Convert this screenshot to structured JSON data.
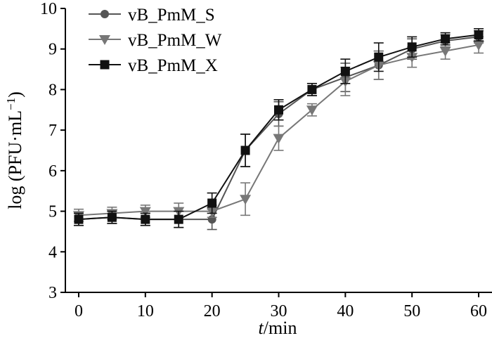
{
  "chart_data": {
    "type": "line",
    "xlabel": {
      "italic": "t",
      "rest": "/min"
    },
    "ylabel": {
      "main": "log (PFU·mL",
      "sup": "−1",
      "close": ")"
    },
    "xlim": [
      -2,
      62
    ],
    "ylim": [
      3,
      10
    ],
    "xticks": [
      0,
      10,
      20,
      30,
      40,
      50,
      60
    ],
    "yticks": [
      3,
      4,
      5,
      6,
      7,
      8,
      9,
      10
    ],
    "legend_position": "top-left",
    "grid": false,
    "series": [
      {
        "name": "vB_PmM_S",
        "marker": "circle",
        "color": "#555555",
        "x": [
          0,
          5,
          10,
          15,
          20,
          25,
          30,
          35,
          40,
          45,
          50,
          55,
          60
        ],
        "y": [
          4.8,
          4.85,
          4.8,
          4.8,
          4.8,
          6.5,
          7.4,
          8.0,
          8.3,
          8.6,
          9.0,
          9.2,
          9.3
        ],
        "err": [
          0.15,
          0.15,
          0.15,
          0.2,
          0.25,
          0.4,
          0.3,
          0.15,
          0.35,
          0.35,
          0.25,
          0.15,
          0.15
        ]
      },
      {
        "name": "vB_PmM_W",
        "marker": "triangle-down",
        "color": "#777777",
        "x": [
          0,
          5,
          10,
          15,
          20,
          25,
          30,
          35,
          40,
          45,
          50,
          55,
          60
        ],
        "y": [
          4.9,
          4.95,
          5.0,
          5.0,
          5.0,
          5.3,
          6.8,
          7.5,
          8.2,
          8.6,
          8.8,
          8.95,
          9.1
        ],
        "err": [
          0.15,
          0.15,
          0.15,
          0.2,
          0.15,
          0.4,
          0.3,
          0.15,
          0.35,
          0.35,
          0.25,
          0.2,
          0.2
        ]
      },
      {
        "name": "vB_PmM_X",
        "marker": "square",
        "color": "#111111",
        "x": [
          0,
          5,
          10,
          15,
          20,
          25,
          30,
          35,
          40,
          45,
          50,
          55,
          60
        ],
        "y": [
          4.8,
          4.85,
          4.8,
          4.8,
          5.2,
          6.5,
          7.5,
          8.0,
          8.45,
          8.8,
          9.05,
          9.25,
          9.35
        ],
        "err": [
          0.15,
          0.15,
          0.15,
          0.2,
          0.25,
          0.4,
          0.25,
          0.15,
          0.3,
          0.35,
          0.25,
          0.15,
          0.15
        ]
      }
    ]
  }
}
